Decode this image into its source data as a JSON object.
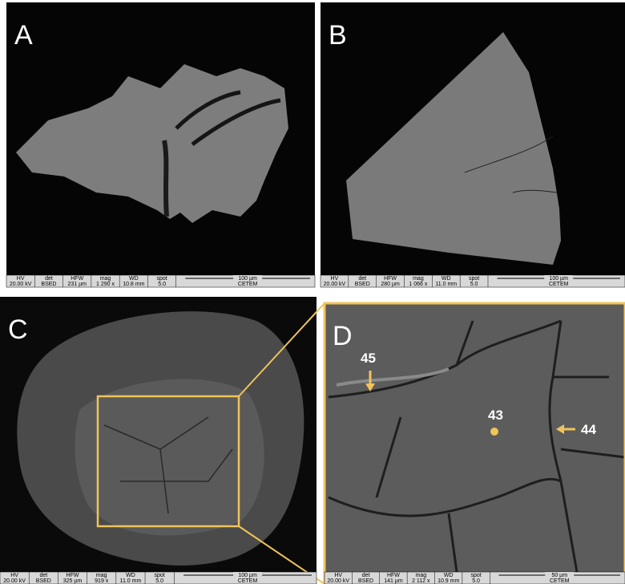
{
  "panels": [
    {
      "label": "A",
      "info": {
        "headers": [
          "HV",
          "det",
          "HFW",
          "mag",
          "WD",
          "spot"
        ],
        "values": [
          "20.00 kV",
          "BSED",
          "231 µm",
          "1 290 x",
          "10.8 mm",
          "5.0"
        ],
        "scale": "100 µm",
        "facility": "CETEM"
      }
    },
    {
      "label": "B",
      "info": {
        "headers": [
          "HV",
          "det",
          "HFW",
          "mag",
          "WD",
          "spot"
        ],
        "values": [
          "20.00 kV",
          "BSED",
          "280 µm",
          "1 066 x",
          "11.0 mm",
          "5.0"
        ],
        "scale": "100 µm",
        "facility": "CETEM"
      }
    },
    {
      "label": "C",
      "info": {
        "headers": [
          "HV",
          "det",
          "HFW",
          "mag",
          "WD",
          "spot"
        ],
        "values": [
          "20.00 kV",
          "BSED",
          "325 µm",
          "919 x",
          "11.0 mm",
          "5.0"
        ],
        "scale": "100 µm",
        "facility": "CETEM"
      }
    },
    {
      "label": "D",
      "info": {
        "headers": [
          "HV",
          "det",
          "HFW",
          "mag",
          "WD",
          "spot"
        ],
        "values": [
          "20.00 kV",
          "BSED",
          "141 µm",
          "2 112 x",
          "10.9 mm",
          "5.0"
        ],
        "scale": "50 µm",
        "facility": "CETEM"
      }
    }
  ],
  "annotations": [
    {
      "label": "45"
    },
    {
      "label": "43"
    },
    {
      "label": "44"
    }
  ]
}
